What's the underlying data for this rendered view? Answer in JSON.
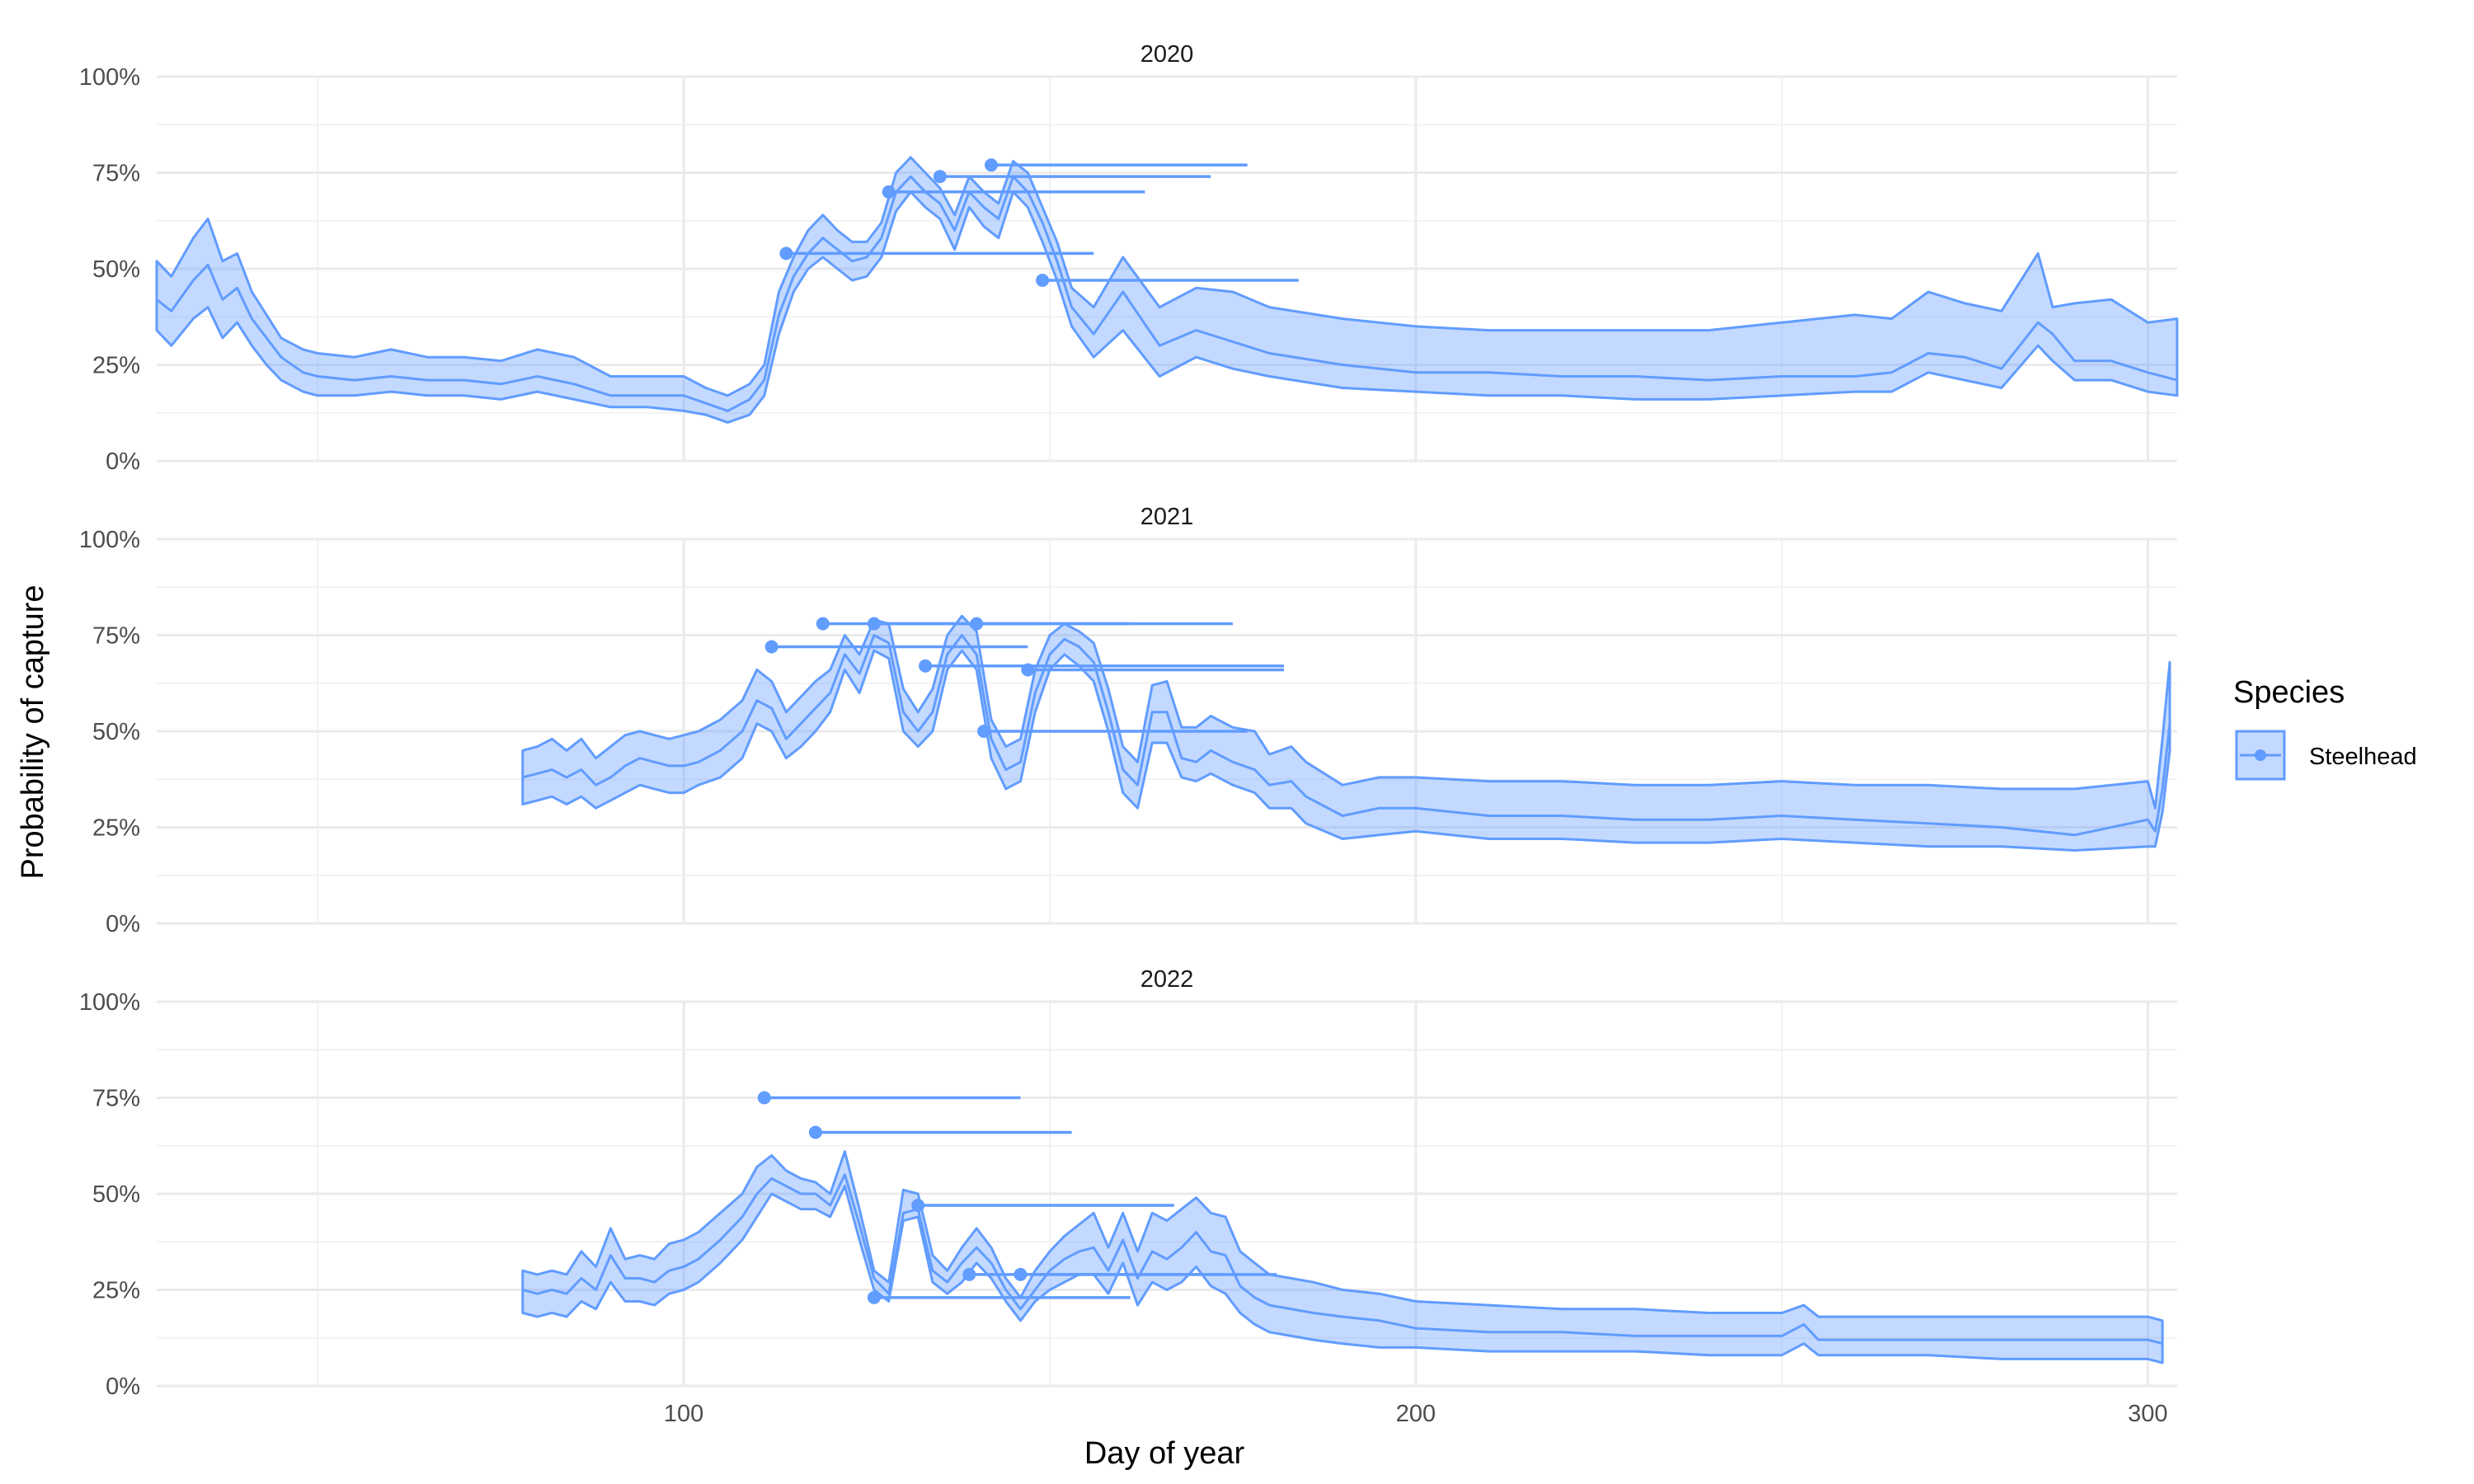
{
  "chart_data": {
    "type": "area",
    "xlabel": "Day of year",
    "ylabel": "Probability of capture",
    "xlim": [
      28,
      304
    ],
    "ylim": [
      0,
      1
    ],
    "x_ticks": [
      100,
      200,
      300
    ],
    "x_minor_ticks": [
      50,
      150,
      250,
      300
    ],
    "y_ticks": [
      0,
      0.25,
      0.5,
      0.75,
      1.0
    ],
    "y_tick_labels": [
      "0%",
      "25%",
      "50%",
      "75%",
      "100%"
    ],
    "grid": true,
    "legend": {
      "title": "Species",
      "position": "right",
      "entries": [
        "Steelhead"
      ]
    },
    "colors": {
      "line": "#619CFF",
      "ribbon": "#619CFF",
      "grid_major": "#ebebeb",
      "grid_minor": "#f2f2f2"
    },
    "panels": [
      {
        "strip": "2020",
        "x": [
          28,
          30,
          33,
          35,
          37,
          39,
          41,
          43,
          45,
          48,
          50,
          55,
          60,
          65,
          70,
          75,
          80,
          85,
          90,
          95,
          100,
          103,
          106,
          109,
          111,
          113,
          115,
          117,
          119,
          121,
          123,
          125,
          127,
          129,
          131,
          133,
          135,
          137,
          139,
          141,
          143,
          145,
          147,
          149,
          151,
          153,
          156,
          160,
          165,
          170,
          175,
          180,
          190,
          200,
          210,
          220,
          230,
          240,
          250,
          260,
          265,
          270,
          275,
          280,
          285,
          287,
          290,
          295,
          300,
          304
        ],
        "mean": [
          0.42,
          0.39,
          0.47,
          0.51,
          0.42,
          0.45,
          0.37,
          0.32,
          0.27,
          0.23,
          0.22,
          0.21,
          0.22,
          0.21,
          0.21,
          0.2,
          0.22,
          0.2,
          0.17,
          0.17,
          0.17,
          0.15,
          0.13,
          0.16,
          0.21,
          0.38,
          0.48,
          0.54,
          0.58,
          0.55,
          0.52,
          0.53,
          0.58,
          0.7,
          0.74,
          0.7,
          0.67,
          0.6,
          0.7,
          0.66,
          0.63,
          0.74,
          0.7,
          0.62,
          0.52,
          0.4,
          0.33,
          0.44,
          0.3,
          0.34,
          0.31,
          0.28,
          0.25,
          0.23,
          0.23,
          0.22,
          0.22,
          0.21,
          0.22,
          0.22,
          0.23,
          0.28,
          0.27,
          0.24,
          0.36,
          0.33,
          0.26,
          0.26,
          0.23,
          0.21
        ],
        "lower": [
          0.34,
          0.3,
          0.37,
          0.4,
          0.32,
          0.36,
          0.3,
          0.25,
          0.21,
          0.18,
          0.17,
          0.17,
          0.18,
          0.17,
          0.17,
          0.16,
          0.18,
          0.16,
          0.14,
          0.14,
          0.13,
          0.12,
          0.1,
          0.12,
          0.17,
          0.33,
          0.44,
          0.5,
          0.53,
          0.5,
          0.47,
          0.48,
          0.53,
          0.65,
          0.7,
          0.66,
          0.63,
          0.55,
          0.66,
          0.61,
          0.58,
          0.7,
          0.66,
          0.57,
          0.47,
          0.35,
          0.27,
          0.34,
          0.22,
          0.27,
          0.24,
          0.22,
          0.19,
          0.18,
          0.17,
          0.17,
          0.16,
          0.16,
          0.17,
          0.18,
          0.18,
          0.23,
          0.21,
          0.19,
          0.3,
          0.26,
          0.21,
          0.21,
          0.18,
          0.17
        ],
        "upper": [
          0.52,
          0.48,
          0.58,
          0.63,
          0.52,
          0.54,
          0.44,
          0.38,
          0.32,
          0.29,
          0.28,
          0.27,
          0.29,
          0.27,
          0.27,
          0.26,
          0.29,
          0.27,
          0.22,
          0.22,
          0.22,
          0.19,
          0.17,
          0.2,
          0.25,
          0.44,
          0.53,
          0.6,
          0.64,
          0.6,
          0.57,
          0.57,
          0.62,
          0.75,
          0.79,
          0.75,
          0.71,
          0.64,
          0.74,
          0.7,
          0.67,
          0.78,
          0.75,
          0.66,
          0.57,
          0.45,
          0.4,
          0.53,
          0.4,
          0.45,
          0.44,
          0.4,
          0.37,
          0.35,
          0.34,
          0.34,
          0.34,
          0.34,
          0.36,
          0.38,
          0.37,
          0.44,
          0.41,
          0.39,
          0.54,
          0.4,
          0.41,
          0.42,
          0.36,
          0.37
        ],
        "segments": [
          {
            "start": 114,
            "end": 156,
            "y": 0.54
          },
          {
            "start": 135,
            "end": 172,
            "y": 0.74
          },
          {
            "start": 128,
            "end": 163,
            "y": 0.7
          },
          {
            "start": 142,
            "end": 177,
            "y": 0.77
          },
          {
            "start": 149,
            "end": 184,
            "y": 0.47
          }
        ]
      },
      {
        "strip": "2021",
        "x": [
          78,
          80,
          82,
          84,
          86,
          88,
          90,
          92,
          94,
          96,
          98,
          100,
          102,
          105,
          108,
          110,
          112,
          114,
          116,
          118,
          120,
          122,
          124,
          126,
          128,
          130,
          132,
          134,
          136,
          138,
          140,
          142,
          144,
          146,
          148,
          150,
          152,
          154,
          156,
          158,
          160,
          162,
          164,
          166,
          168,
          170,
          172,
          175,
          178,
          180,
          183,
          185,
          190,
          195,
          200,
          210,
          220,
          230,
          240,
          250,
          260,
          270,
          280,
          290,
          300,
          301,
          302,
          303
        ],
        "mean": [
          0.38,
          0.39,
          0.4,
          0.38,
          0.4,
          0.36,
          0.38,
          0.41,
          0.43,
          0.42,
          0.41,
          0.41,
          0.42,
          0.45,
          0.5,
          0.58,
          0.56,
          0.48,
          0.52,
          0.56,
          0.6,
          0.7,
          0.65,
          0.75,
          0.73,
          0.55,
          0.5,
          0.55,
          0.7,
          0.75,
          0.7,
          0.48,
          0.4,
          0.42,
          0.6,
          0.7,
          0.74,
          0.72,
          0.68,
          0.55,
          0.4,
          0.36,
          0.55,
          0.55,
          0.43,
          0.42,
          0.45,
          0.42,
          0.4,
          0.36,
          0.37,
          0.33,
          0.28,
          0.3,
          0.3,
          0.28,
          0.28,
          0.27,
          0.27,
          0.28,
          0.27,
          0.26,
          0.25,
          0.23,
          0.27,
          0.24,
          0.35,
          0.52
        ],
        "lower": [
          0.31,
          0.32,
          0.33,
          0.31,
          0.33,
          0.3,
          0.32,
          0.34,
          0.36,
          0.35,
          0.34,
          0.34,
          0.36,
          0.38,
          0.43,
          0.52,
          0.5,
          0.43,
          0.46,
          0.5,
          0.55,
          0.66,
          0.6,
          0.71,
          0.69,
          0.5,
          0.46,
          0.5,
          0.66,
          0.71,
          0.66,
          0.43,
          0.35,
          0.37,
          0.55,
          0.66,
          0.7,
          0.67,
          0.63,
          0.5,
          0.34,
          0.3,
          0.47,
          0.47,
          0.38,
          0.37,
          0.39,
          0.36,
          0.34,
          0.3,
          0.3,
          0.26,
          0.22,
          0.23,
          0.24,
          0.22,
          0.22,
          0.21,
          0.21,
          0.22,
          0.21,
          0.2,
          0.2,
          0.19,
          0.2,
          0.2,
          0.29,
          0.45
        ],
        "upper": [
          0.45,
          0.46,
          0.48,
          0.45,
          0.48,
          0.43,
          0.46,
          0.49,
          0.5,
          0.49,
          0.48,
          0.49,
          0.5,
          0.53,
          0.58,
          0.66,
          0.63,
          0.55,
          0.59,
          0.63,
          0.66,
          0.75,
          0.7,
          0.79,
          0.78,
          0.61,
          0.55,
          0.61,
          0.75,
          0.8,
          0.76,
          0.53,
          0.46,
          0.48,
          0.66,
          0.75,
          0.78,
          0.76,
          0.73,
          0.61,
          0.46,
          0.42,
          0.62,
          0.63,
          0.51,
          0.51,
          0.54,
          0.51,
          0.5,
          0.44,
          0.46,
          0.42,
          0.36,
          0.38,
          0.38,
          0.37,
          0.37,
          0.36,
          0.36,
          0.37,
          0.36,
          0.36,
          0.35,
          0.35,
          0.37,
          0.3,
          0.48,
          0.68
        ],
        "segments": [
          {
            "start": 112,
            "end": 147,
            "y": 0.72
          },
          {
            "start": 119,
            "end": 161,
            "y": 0.78
          },
          {
            "start": 126,
            "end": 148,
            "y": 0.78
          },
          {
            "start": 133,
            "end": 182,
            "y": 0.67
          },
          {
            "start": 140,
            "end": 175,
            "y": 0.78
          },
          {
            "start": 141,
            "end": 177,
            "y": 0.5
          },
          {
            "start": 147,
            "end": 182,
            "y": 0.66
          }
        ]
      },
      {
        "strip": "2022",
        "x": [
          78,
          80,
          82,
          84,
          86,
          88,
          90,
          92,
          94,
          96,
          98,
          100,
          102,
          105,
          108,
          110,
          112,
          114,
          116,
          118,
          120,
          122,
          124,
          126,
          128,
          130,
          132,
          134,
          136,
          138,
          140,
          142,
          144,
          146,
          148,
          150,
          152,
          154,
          156,
          158,
          160,
          162,
          164,
          166,
          168,
          170,
          172,
          174,
          176,
          178,
          180,
          183,
          186,
          190,
          195,
          200,
          210,
          220,
          230,
          240,
          250,
          253,
          255,
          260,
          270,
          280,
          290,
          300,
          302
        ],
        "mean": [
          0.25,
          0.24,
          0.25,
          0.24,
          0.28,
          0.25,
          0.34,
          0.28,
          0.28,
          0.27,
          0.3,
          0.31,
          0.33,
          0.38,
          0.44,
          0.5,
          0.54,
          0.52,
          0.5,
          0.5,
          0.47,
          0.55,
          0.42,
          0.28,
          0.24,
          0.45,
          0.46,
          0.3,
          0.27,
          0.32,
          0.36,
          0.32,
          0.25,
          0.2,
          0.25,
          0.3,
          0.33,
          0.35,
          0.36,
          0.3,
          0.38,
          0.28,
          0.35,
          0.33,
          0.36,
          0.4,
          0.35,
          0.34,
          0.26,
          0.23,
          0.21,
          0.2,
          0.19,
          0.18,
          0.17,
          0.15,
          0.14,
          0.14,
          0.13,
          0.13,
          0.13,
          0.16,
          0.12,
          0.12,
          0.12,
          0.12,
          0.12,
          0.12,
          0.11
        ],
        "lower": [
          0.19,
          0.18,
          0.19,
          0.18,
          0.22,
          0.2,
          0.27,
          0.22,
          0.22,
          0.21,
          0.24,
          0.25,
          0.27,
          0.32,
          0.38,
          0.44,
          0.5,
          0.48,
          0.46,
          0.46,
          0.44,
          0.52,
          0.38,
          0.25,
          0.22,
          0.43,
          0.44,
          0.27,
          0.24,
          0.27,
          0.32,
          0.28,
          0.22,
          0.17,
          0.22,
          0.25,
          0.27,
          0.29,
          0.29,
          0.24,
          0.32,
          0.21,
          0.27,
          0.25,
          0.27,
          0.31,
          0.26,
          0.24,
          0.19,
          0.16,
          0.14,
          0.13,
          0.12,
          0.11,
          0.1,
          0.1,
          0.09,
          0.09,
          0.09,
          0.08,
          0.08,
          0.11,
          0.08,
          0.08,
          0.08,
          0.07,
          0.07,
          0.07,
          0.06
        ],
        "upper": [
          0.3,
          0.29,
          0.3,
          0.29,
          0.35,
          0.31,
          0.41,
          0.33,
          0.34,
          0.33,
          0.37,
          0.38,
          0.4,
          0.45,
          0.5,
          0.57,
          0.6,
          0.56,
          0.54,
          0.53,
          0.5,
          0.61,
          0.46,
          0.3,
          0.27,
          0.51,
          0.5,
          0.34,
          0.3,
          0.36,
          0.41,
          0.36,
          0.28,
          0.23,
          0.3,
          0.35,
          0.39,
          0.42,
          0.45,
          0.36,
          0.45,
          0.35,
          0.45,
          0.43,
          0.46,
          0.49,
          0.45,
          0.44,
          0.35,
          0.32,
          0.29,
          0.28,
          0.27,
          0.25,
          0.24,
          0.22,
          0.21,
          0.2,
          0.2,
          0.19,
          0.19,
          0.21,
          0.18,
          0.18,
          0.18,
          0.18,
          0.18,
          0.18,
          0.17
        ],
        "segments": [
          {
            "start": 111,
            "end": 146,
            "y": 0.75
          },
          {
            "start": 118,
            "end": 153,
            "y": 0.66
          },
          {
            "start": 132,
            "end": 167,
            "y": 0.47
          },
          {
            "start": 126,
            "end": 161,
            "y": 0.23
          },
          {
            "start": 139,
            "end": 174,
            "y": 0.29
          },
          {
            "start": 146,
            "end": 181,
            "y": 0.29
          }
        ]
      }
    ]
  }
}
